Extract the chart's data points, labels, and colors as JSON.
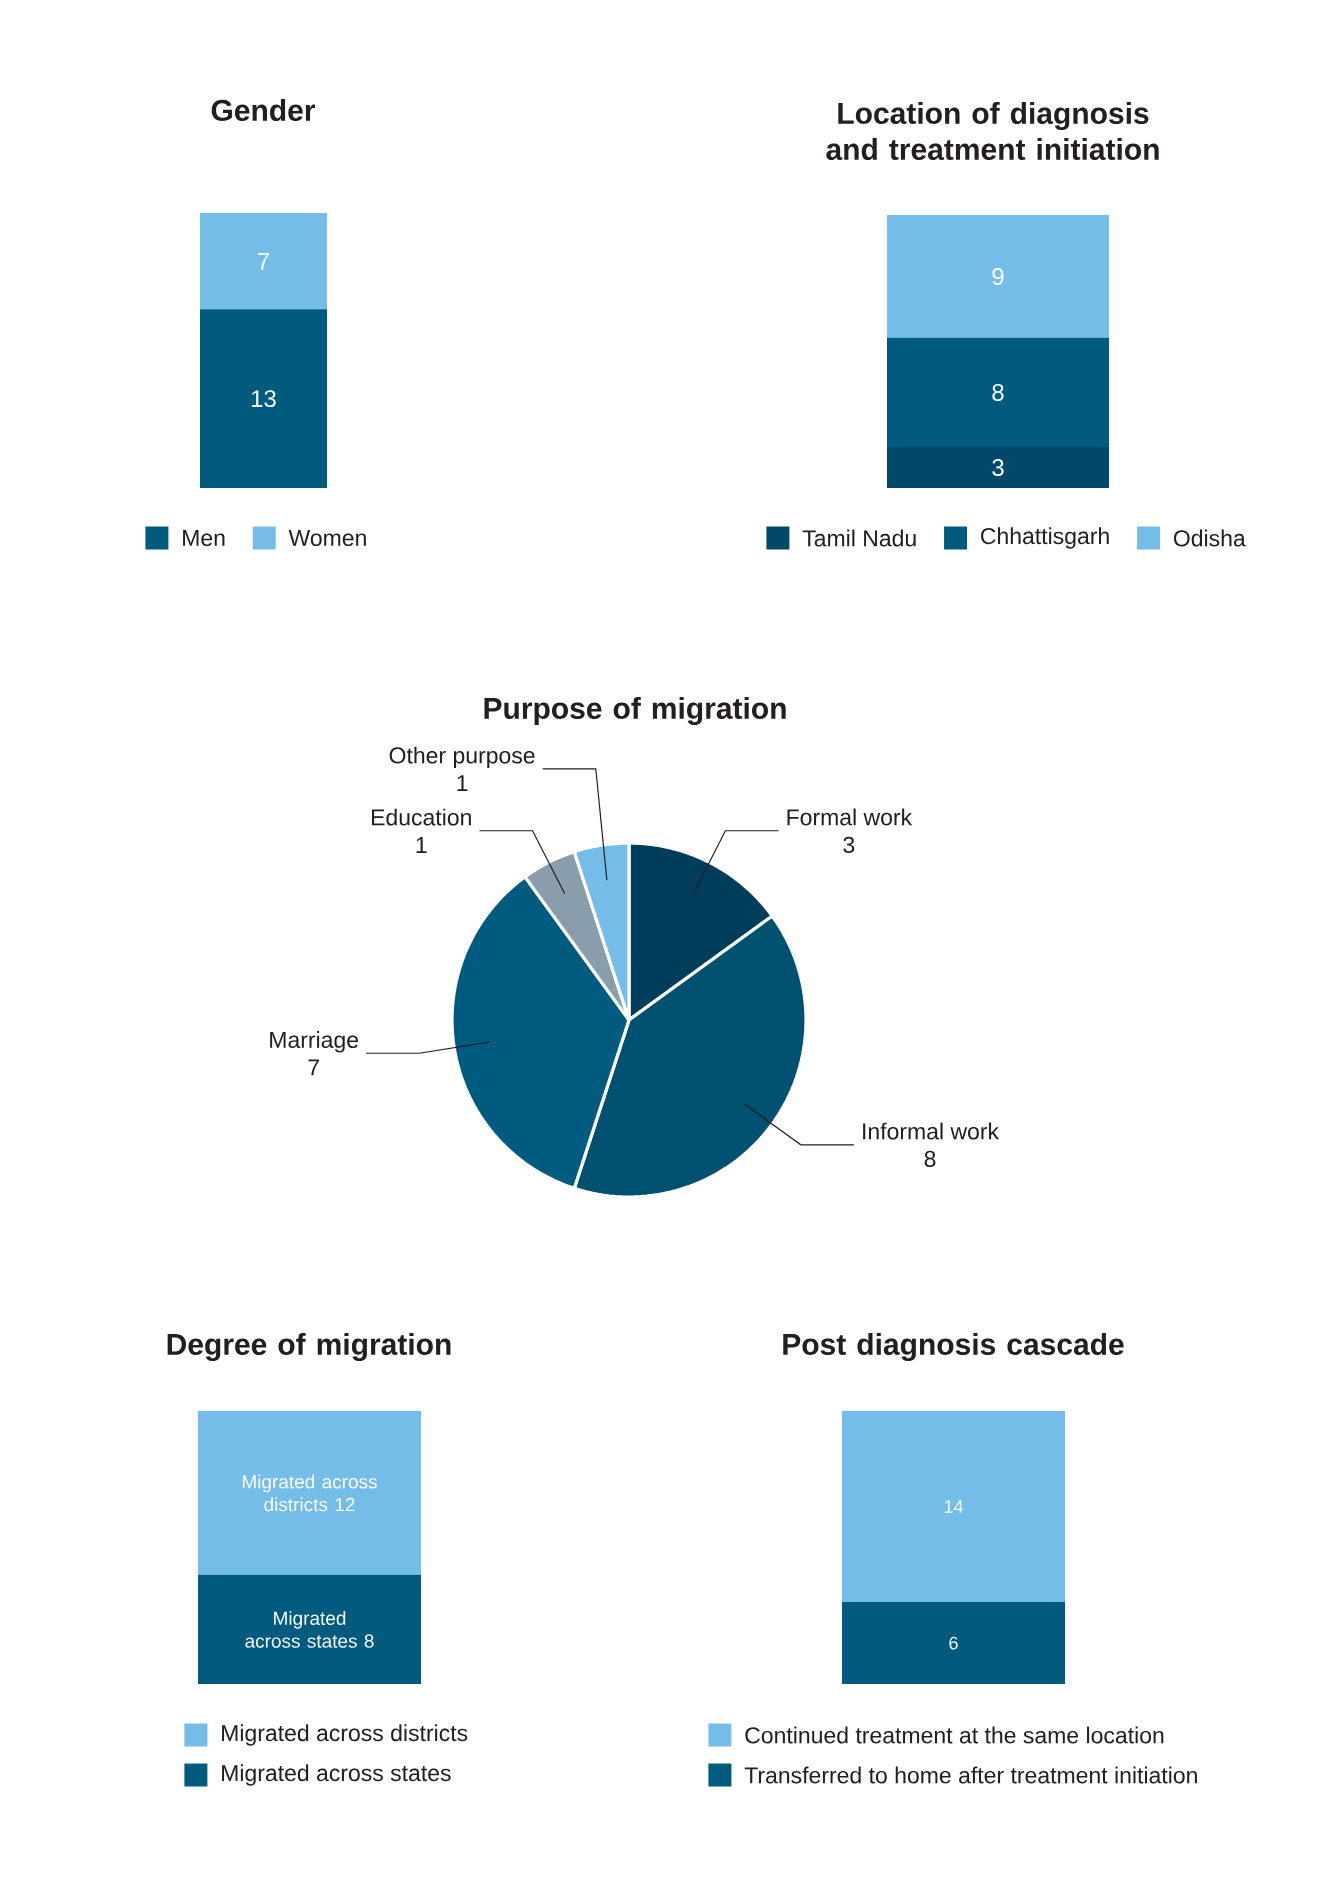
{
  "chart_data": [
    {
      "type": "bar",
      "stacked": true,
      "title": "Gender",
      "categories": [
        null
      ],
      "data_labels": true,
      "legend": "bottom",
      "series": [
        {
          "name": "Men",
          "color": "#005b7f",
          "values": [
            13
          ]
        },
        {
          "name": "Women",
          "color": "#74bde8",
          "values": [
            7
          ]
        }
      ]
    },
    {
      "type": "bar",
      "stacked": true,
      "title": "Location of diagnosis and treatment initiation",
      "categories": [
        null
      ],
      "data_labels": true,
      "legend": "bottom",
      "series": [
        {
          "name": "Tamil Nadu",
          "color": "#00496a",
          "values": [
            3
          ]
        },
        {
          "name": "Chhattisgarh",
          "color": "#005b7f",
          "values": [
            8
          ]
        },
        {
          "name": "Odisha",
          "color": "#74bde8",
          "values": [
            9
          ]
        }
      ]
    },
    {
      "type": "pie",
      "title": "Purpose of migration",
      "categories": [
        "Formal work",
        "Informal work",
        "Marriage",
        "Education",
        "Other purpose"
      ],
      "values": [
        3,
        8,
        7,
        1,
        1
      ],
      "colors": [
        "#003d5b",
        "#00506f",
        "#005b80",
        "#8a9dad",
        "#74bde8"
      ],
      "data_labels": true
    },
    {
      "type": "bar",
      "stacked": true,
      "title": "Degree of migration",
      "categories": [
        null
      ],
      "legend": "bottom",
      "series": [
        {
          "name": "Migrated across states",
          "color": "#005b7f",
          "values": [
            8
          ],
          "value_labels": [
            "Migrated across states 8"
          ]
        },
        {
          "name": "Migrated across districts",
          "color": "#74bde8",
          "values": [
            12
          ],
          "value_labels": [
            "Migrated across districts 12"
          ]
        }
      ]
    },
    {
      "type": "bar",
      "stacked": true,
      "title": "Post diagnosis cascade",
      "categories": [
        null
      ],
      "data_labels": true,
      "legend": "bottom",
      "series": [
        {
          "name": "Transferred to home after treatment initiation",
          "color": "#005b7f",
          "values": [
            6
          ]
        },
        {
          "name": "Continued treatment at the same location",
          "color": "#74bde8",
          "values": [
            14
          ]
        }
      ]
    }
  ]
}
